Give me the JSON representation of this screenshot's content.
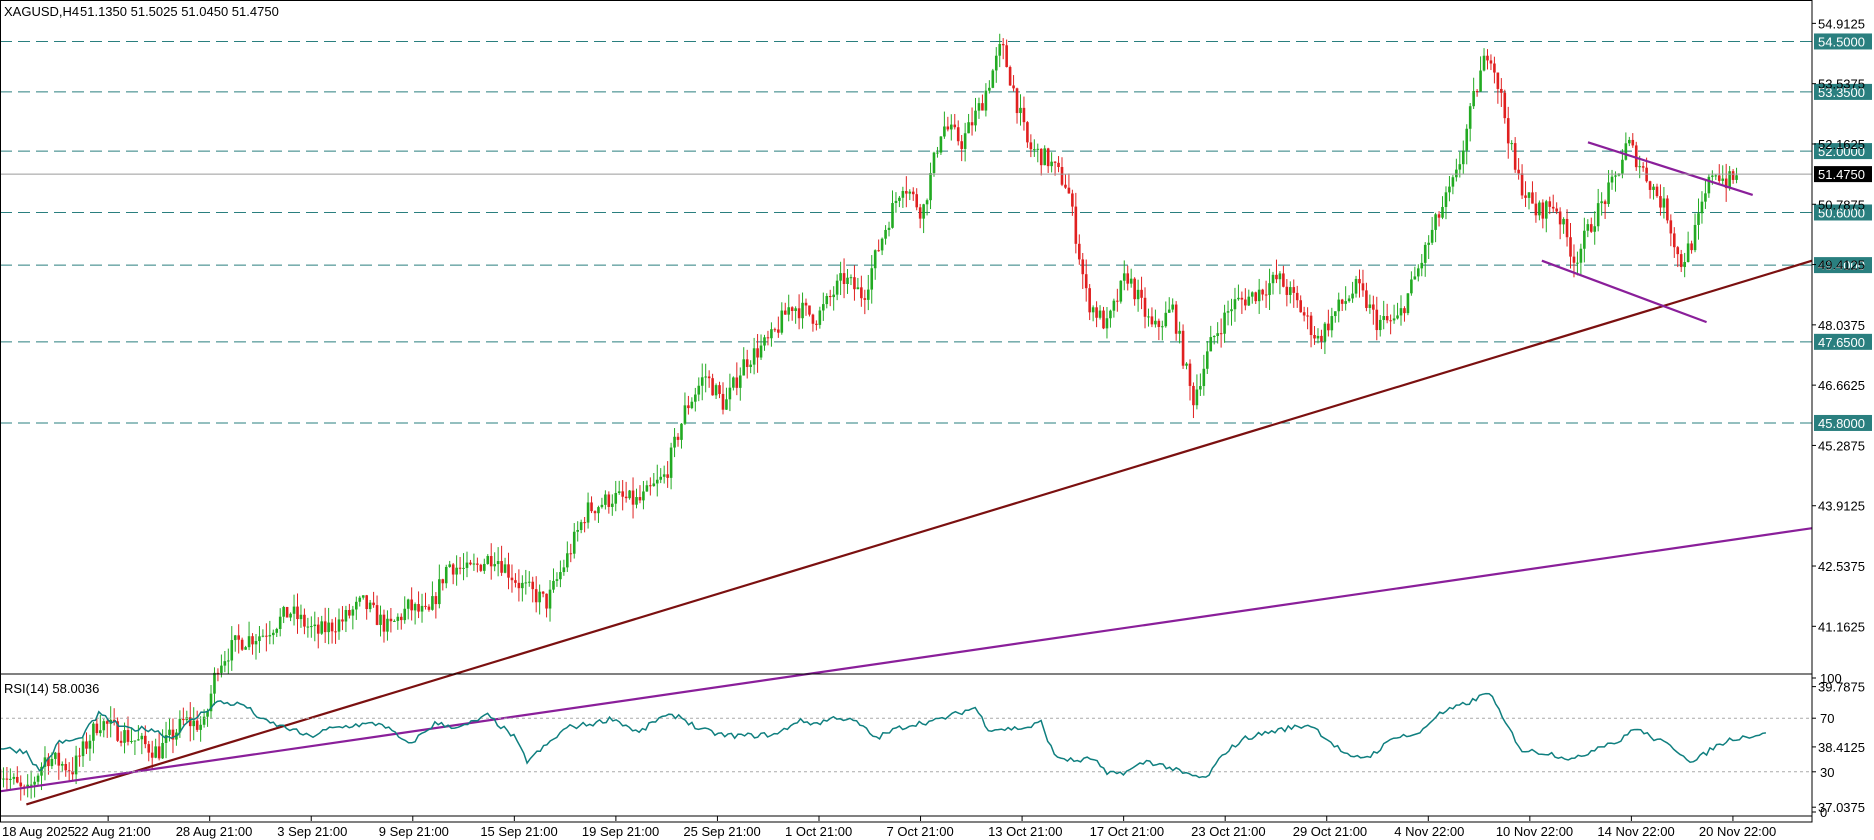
{
  "header": {
    "symbol_label": "XAGUSD,H4",
    "ohlc_text": "51.1350 51.5025 51.0450 51.4750",
    "rsi_label": "RSI(14) 58.0036"
  },
  "colors": {
    "bull": "#22aa22",
    "bear": "#e02020",
    "level_line": "#2a7f7f",
    "support_trend": "#7b1010",
    "long_trend": "#8a1f9a",
    "triangle": "#8a1f9a",
    "rsi_line": "#0f7f7f",
    "current_price_bg": "#000000"
  },
  "chart_data": [
    {
      "type": "candlestick",
      "title": "",
      "symbol": "XAGUSD",
      "timeframe": "H4",
      "ylim": [
        36.7,
        55.4
      ],
      "y_ticks": [
        "54.9125",
        "53.5375",
        "52.1625",
        "50.7875",
        "49.4125",
        "48.0375",
        "46.6625",
        "45.2875",
        "43.9125",
        "42.5375",
        "41.1625",
        "39.7875",
        "38.4125",
        "37.0375"
      ],
      "x_ticks": [
        "18 Aug 2025",
        "22 Aug 21:00",
        "28 Aug 21:00",
        "3 Sep 21:00",
        "9 Sep 21:00",
        "15 Sep 21:00",
        "19 Sep 21:00",
        "25 Sep 21:00",
        "1 Oct 21:00",
        "7 Oct 21:00",
        "13 Oct 21:00",
        "17 Oct 21:00",
        "23 Oct 21:00",
        "29 Oct 21:00",
        "4 Nov 22:00",
        "10 Nov 22:00",
        "14 Nov 22:00",
        "20 Nov 22:00"
      ],
      "current_price": "51.4750",
      "horizontal_levels": [
        "54.5000",
        "53.3500",
        "52.0000",
        "50.6000",
        "49.4000",
        "47.6500",
        "45.8000"
      ],
      "price_path": [
        [
          0,
          37.9
        ],
        [
          8,
          37.3
        ],
        [
          14,
          38.2
        ],
        [
          22,
          37.9
        ],
        [
          30,
          39.0
        ],
        [
          40,
          38.6
        ],
        [
          48,
          38.3
        ],
        [
          56,
          39.0
        ],
        [
          62,
          38.9
        ],
        [
          66,
          40.3
        ],
        [
          72,
          40.8
        ],
        [
          80,
          41.0
        ],
        [
          88,
          41.5
        ],
        [
          96,
          41.0
        ],
        [
          104,
          41.3
        ],
        [
          110,
          41.7
        ],
        [
          118,
          41.1
        ],
        [
          124,
          41.6
        ],
        [
          130,
          41.4
        ],
        [
          136,
          42.6
        ],
        [
          142,
          42.4
        ],
        [
          150,
          42.8
        ],
        [
          158,
          42.1
        ],
        [
          166,
          41.7
        ],
        [
          172,
          42.7
        ],
        [
          178,
          43.8
        ],
        [
          186,
          44.1
        ],
        [
          194,
          44.0
        ],
        [
          202,
          44.6
        ],
        [
          208,
          46.1
        ],
        [
          214,
          46.9
        ],
        [
          220,
          46.2
        ],
        [
          226,
          47.2
        ],
        [
          234,
          47.7
        ],
        [
          240,
          48.5
        ],
        [
          248,
          48.2
        ],
        [
          256,
          49.1
        ],
        [
          262,
          48.7
        ],
        [
          268,
          50.1
        ],
        [
          274,
          51.3
        ],
        [
          280,
          50.6
        ],
        [
          286,
          52.6
        ],
        [
          292,
          52.2
        ],
        [
          298,
          53.1
        ],
        [
          304,
          54.4
        ],
        [
          308,
          53.3
        ],
        [
          312,
          52.1
        ],
        [
          318,
          51.8
        ],
        [
          324,
          51.2
        ],
        [
          330,
          48.6
        ],
        [
          336,
          48.0
        ],
        [
          342,
          49.2
        ],
        [
          350,
          47.9
        ],
        [
          356,
          48.4
        ],
        [
          362,
          46.3
        ],
        [
          368,
          47.7
        ],
        [
          374,
          48.5
        ],
        [
          380,
          48.7
        ],
        [
          388,
          49.1
        ],
        [
          394,
          48.5
        ],
        [
          400,
          47.7
        ],
        [
          406,
          48.4
        ],
        [
          412,
          48.9
        ],
        [
          418,
          48.1
        ],
        [
          424,
          48.1
        ],
        [
          430,
          49.2
        ],
        [
          436,
          50.4
        ],
        [
          442,
          51.4
        ],
        [
          448,
          53.4
        ],
        [
          452,
          54.4
        ],
        [
          456,
          53.1
        ],
        [
          460,
          51.5
        ],
        [
          466,
          50.6
        ],
        [
          472,
          50.8
        ],
        [
          478,
          49.5
        ],
        [
          484,
          50.5
        ],
        [
          490,
          51.3
        ],
        [
          494,
          52.2
        ],
        [
          500,
          51.4
        ],
        [
          506,
          50.6
        ],
        [
          510,
          49.4
        ],
        [
          514,
          50.0
        ],
        [
          520,
          51.6
        ],
        [
          524,
          51.3
        ],
        [
          528,
          51.4
        ]
      ],
      "trendlines": [
        {
          "name": "rising support",
          "points": [
            [
              8,
              37.1
            ],
            [
              550,
              49.5
            ]
          ]
        },
        {
          "name": "long-term rising",
          "points": [
            [
              0,
              37.4
            ],
            [
              550,
              43.4
            ]
          ]
        },
        {
          "name": "triangle upper",
          "points": [
            [
              482,
              52.2
            ],
            [
              532,
              51.0
            ]
          ]
        },
        {
          "name": "triangle lower",
          "points": [
            [
              468,
              49.5
            ],
            [
              518,
              48.1
            ]
          ]
        }
      ]
    },
    {
      "type": "line",
      "title": "",
      "name": "RSI(14)",
      "ylim": [
        0,
        100
      ],
      "y_ticks": [
        "100",
        "70",
        "30",
        "0"
      ],
      "levels": [
        70,
        30
      ],
      "path": [
        [
          0,
          48
        ],
        [
          8,
          45
        ],
        [
          12,
          30
        ],
        [
          18,
          52
        ],
        [
          24,
          54
        ],
        [
          30,
          73
        ],
        [
          38,
          62
        ],
        [
          46,
          62
        ],
        [
          52,
          55
        ],
        [
          58,
          68
        ],
        [
          66,
          82
        ],
        [
          74,
          80
        ],
        [
          80,
          68
        ],
        [
          88,
          62
        ],
        [
          94,
          56
        ],
        [
          100,
          62
        ],
        [
          108,
          65
        ],
        [
          116,
          66
        ],
        [
          124,
          50
        ],
        [
          132,
          66
        ],
        [
          140,
          63
        ],
        [
          148,
          72
        ],
        [
          156,
          56
        ],
        [
          160,
          38
        ],
        [
          166,
          50
        ],
        [
          172,
          63
        ],
        [
          180,
          66
        ],
        [
          186,
          70
        ],
        [
          194,
          59
        ],
        [
          200,
          70
        ],
        [
          206,
          72
        ],
        [
          212,
          62
        ],
        [
          220,
          57
        ],
        [
          228,
          57
        ],
        [
          236,
          58
        ],
        [
          242,
          68
        ],
        [
          248,
          66
        ],
        [
          254,
          71
        ],
        [
          260,
          67
        ],
        [
          266,
          55
        ],
        [
          272,
          62
        ],
        [
          278,
          66
        ],
        [
          284,
          68
        ],
        [
          290,
          73
        ],
        [
          296,
          78
        ],
        [
          300,
          62
        ],
        [
          306,
          62
        ],
        [
          312,
          63
        ],
        [
          316,
          67
        ],
        [
          320,
          42
        ],
        [
          326,
          38
        ],
        [
          332,
          40
        ],
        [
          336,
          28
        ],
        [
          342,
          30
        ],
        [
          348,
          38
        ],
        [
          354,
          34
        ],
        [
          360,
          28
        ],
        [
          366,
          25
        ],
        [
          372,
          45
        ],
        [
          378,
          55
        ],
        [
          384,
          59
        ],
        [
          392,
          63
        ],
        [
          398,
          65
        ],
        [
          404,
          52
        ],
        [
          410,
          40
        ],
        [
          416,
          42
        ],
        [
          424,
          57
        ],
        [
          430,
          57
        ],
        [
          436,
          72
        ],
        [
          442,
          78
        ],
        [
          448,
          84
        ],
        [
          452,
          90
        ],
        [
          456,
          70
        ],
        [
          462,
          46
        ],
        [
          470,
          44
        ],
        [
          478,
          39
        ],
        [
          486,
          50
        ],
        [
          492,
          53
        ],
        [
          496,
          63
        ],
        [
          502,
          55
        ],
        [
          508,
          48
        ],
        [
          514,
          37
        ],
        [
          520,
          48
        ],
        [
          526,
          55
        ],
        [
          532,
          57
        ],
        [
          536,
          59
        ]
      ]
    }
  ]
}
